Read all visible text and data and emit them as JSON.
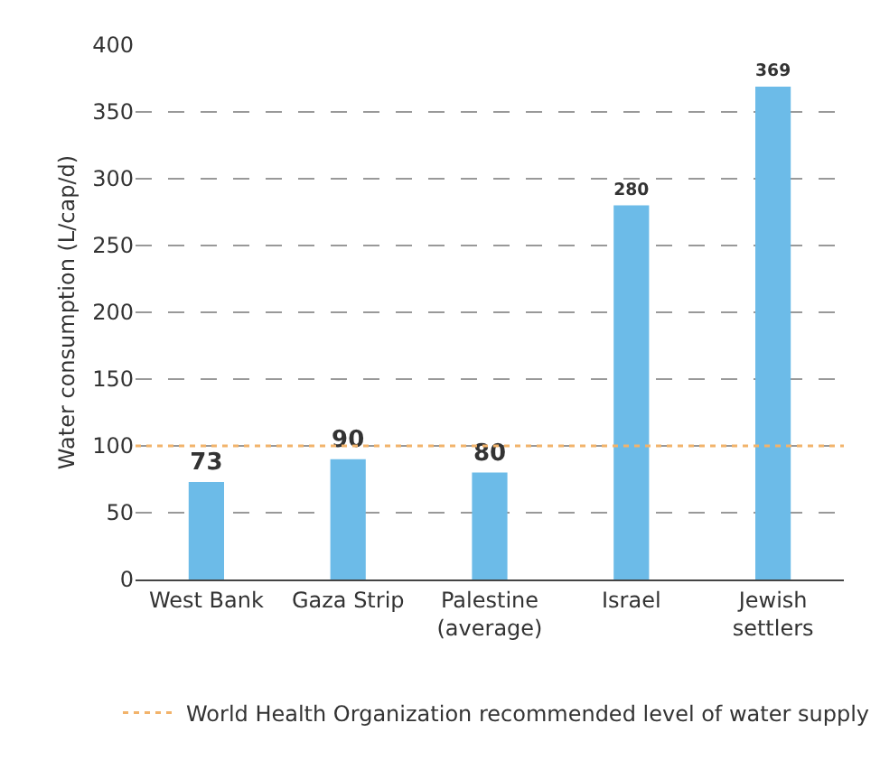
{
  "chart_data": {
    "type": "bar",
    "ylabel": "Water consumption (L/cap/d)",
    "categories": [
      "West Bank",
      "Gaza Strip",
      "Palestine\n(average)",
      "Israel",
      "Jewish\nsettlers"
    ],
    "values": [
      73,
      90,
      80,
      280,
      369
    ],
    "color": "#6cbbe8",
    "data_labels": true,
    "ylim": [
      0,
      400
    ],
    "yticks": [
      0,
      50,
      100,
      150,
      200,
      250,
      300,
      350,
      400
    ],
    "grid": "y",
    "legend": "bottom",
    "ref_lines": [
      {
        "axis": "y",
        "value": 100,
        "label": "World Health Organization recommended level of water supply",
        "color": "#f2b36b",
        "line_style": "dotted"
      }
    ]
  }
}
